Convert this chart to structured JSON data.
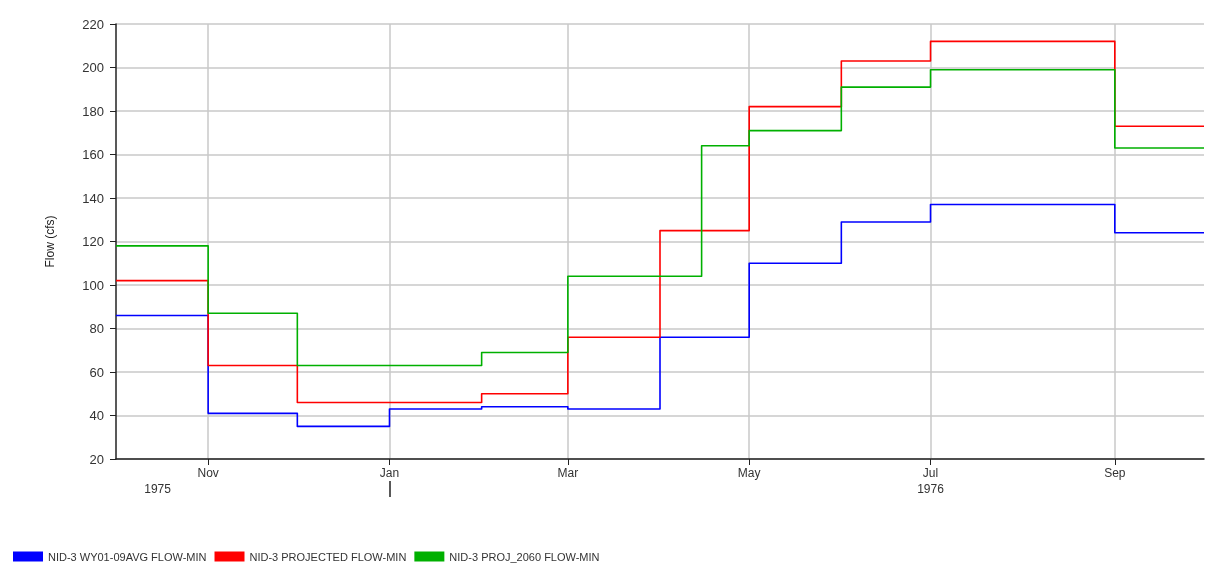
{
  "chart_data": {
    "type": "step",
    "ylabel": "Flow (cfs)",
    "xlim": [
      "1975-10-01",
      "1976-10-01"
    ],
    "xticks": [
      {
        "value": "1975-11-01",
        "label": "Nov"
      },
      {
        "value": "1976-01-01",
        "label": "Jan"
      },
      {
        "value": "1976-03-01",
        "label": "Mar"
      },
      {
        "value": "1976-05-01",
        "label": "May"
      },
      {
        "value": "1976-07-01",
        "label": "Jul"
      },
      {
        "value": "1976-09-01",
        "label": "Sep"
      }
    ],
    "x2lim": [
      "1975-10-01",
      "1976-10-01"
    ],
    "x2ticks": [
      {
        "value": "1975-10-15",
        "label": "1975"
      },
      {
        "value": "1976-01-01",
        "label": null
      },
      {
        "value": "1976-07-01",
        "label": "1976"
      }
    ],
    "ylim": [
      20,
      220
    ],
    "yticks": [
      20,
      40,
      60,
      80,
      100,
      120,
      140,
      160,
      180,
      200,
      220
    ],
    "grid": true,
    "legend": "bottom",
    "line_style": "solid",
    "marker": "none",
    "series": [
      {
        "name": "NID-3 WY01-09AVG FLOW-MIN",
        "color": "#0000ff",
        "x": [
          "1975-10-01",
          "1975-11-01",
          "1975-12-01",
          "1976-01-01",
          "1976-02-01",
          "1976-03-01",
          "1976-04-01",
          "1976-05-01",
          "1976-06-01",
          "1976-07-01",
          "1976-09-01",
          "1976-10-01"
        ],
        "values": [
          86,
          41,
          35,
          43,
          44,
          43,
          76,
          110,
          129,
          137,
          124,
          124
        ]
      },
      {
        "name": "NID-3 PROJECTED FLOW-MIN",
        "color": "#ff0000",
        "x": [
          "1975-10-01",
          "1975-11-01",
          "1975-12-01",
          "1976-01-01",
          "1976-02-01",
          "1976-03-01",
          "1976-04-01",
          "1976-05-01",
          "1976-06-01",
          "1976-07-01",
          "1976-09-01",
          "1976-10-01"
        ],
        "values": [
          102,
          63,
          46,
          46,
          50,
          76,
          125,
          182,
          203,
          212,
          173,
          173
        ]
      },
      {
        "name": "NID-3 PROJ_2060 FLOW-MIN",
        "color": "#00b000",
        "x": [
          "1975-10-01",
          "1975-11-01",
          "1975-12-01",
          "1976-01-01",
          "1976-02-01",
          "1976-03-01",
          "1976-04-15",
          "1976-05-01",
          "1976-06-01",
          "1976-07-01",
          "1976-09-01",
          "1976-10-01"
        ],
        "values": [
          118,
          87,
          63,
          63,
          69,
          104,
          164,
          171,
          191,
          199,
          163,
          163
        ]
      }
    ]
  }
}
